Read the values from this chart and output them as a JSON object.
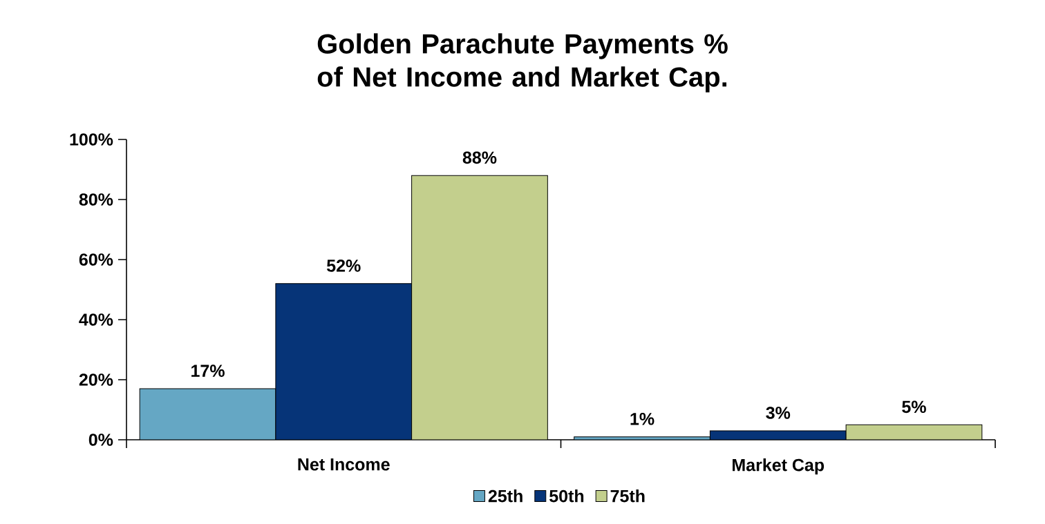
{
  "chart_data": {
    "type": "bar",
    "title": "Golden Parachute Payments % of Net Income and Market Cap.",
    "categories": [
      "Net Income",
      "Market Cap"
    ],
    "series": [
      {
        "name": "25th",
        "color": "#65a7c4",
        "values": [
          17,
          1
        ],
        "value_labels": [
          "17%",
          "1%"
        ]
      },
      {
        "name": "50th",
        "color": "#063478",
        "values": [
          52,
          3
        ],
        "value_labels": [
          "52%",
          "3%"
        ]
      },
      {
        "name": "75th",
        "color": "#c3cf8d",
        "values": [
          88,
          5
        ],
        "value_labels": [
          "88%",
          "5%"
        ]
      }
    ],
    "ylim": [
      0,
      100
    ],
    "yticks": [
      {
        "value": 0,
        "label": "0%"
      },
      {
        "value": 20,
        "label": "20%"
      },
      {
        "value": 40,
        "label": "40%"
      },
      {
        "value": 60,
        "label": "60%"
      },
      {
        "value": 80,
        "label": "80%"
      },
      {
        "value": 100,
        "label": "100%"
      }
    ],
    "grid": false,
    "legend": "bottom"
  }
}
